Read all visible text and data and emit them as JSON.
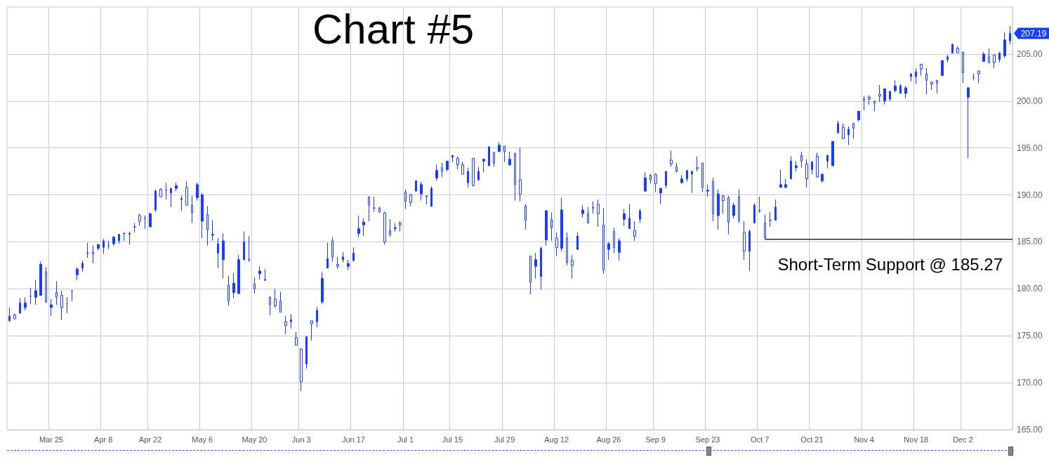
{
  "chart_data": {
    "type": "candlestick",
    "title": "Chart #5",
    "categories": [
      null,
      null,
      null,
      null,
      null,
      null,
      null,
      null,
      "Mar 25",
      null,
      null,
      null,
      null,
      null,
      null,
      null,
      null,
      null,
      "Apr 8",
      null,
      null,
      null,
      null,
      null,
      null,
      null,
      null,
      "Apr 22",
      null,
      null,
      null,
      null,
      null,
      null,
      null,
      null,
      null,
      "May 6",
      null,
      null,
      null,
      null,
      null,
      null,
      null,
      null,
      null,
      "May 20",
      null,
      null,
      null,
      null,
      null,
      null,
      null,
      null,
      "Jun 3",
      null,
      null,
      null,
      null,
      null,
      null,
      null,
      null,
      null,
      "Jun 17",
      null,
      null,
      null,
      null,
      null,
      null,
      null,
      null,
      null,
      "Jul 1",
      null,
      null,
      null,
      null,
      null,
      null,
      null,
      null,
      "Jul 15",
      null,
      null,
      null,
      null,
      null,
      null,
      null,
      null,
      null,
      "Jul 29",
      null,
      null,
      null,
      null,
      null,
      null,
      null,
      null,
      null,
      "Aug 12",
      null,
      null,
      null,
      null,
      null,
      null,
      null,
      null,
      null,
      "Aug 26",
      null,
      null,
      null,
      null,
      null,
      null,
      null,
      null,
      "Sep 9",
      null,
      null,
      null,
      null,
      null,
      null,
      null,
      null,
      null,
      "Sep 23",
      null,
      null,
      null,
      null,
      null,
      null,
      null,
      null,
      null,
      "Oct 7",
      null,
      null,
      null,
      null,
      null,
      null,
      null,
      null,
      null,
      "Oct 21",
      null,
      null,
      null,
      null,
      null,
      null,
      null,
      null,
      null,
      "Nov 4",
      null,
      null,
      null,
      null,
      null,
      null,
      null,
      null,
      null,
      "Nov 18",
      null,
      null,
      null,
      null,
      null,
      null,
      null,
      null,
      "Dec 2",
      null,
      null,
      null,
      null,
      null,
      null,
      null,
      null,
      null
    ],
    "ohlc": [
      [
        176.6,
        178.0,
        176.5,
        177.1
      ],
      [
        177.2,
        177.4,
        176.8,
        176.8
      ],
      [
        177.4,
        179.0,
        177.4,
        178.5
      ],
      [
        178.0,
        179.1,
        177.7,
        178.5
      ],
      [
        179.2,
        180.1,
        178.4,
        179.2
      ],
      [
        179.1,
        180.9,
        178.3,
        179.8
      ],
      [
        179.3,
        182.9,
        179.3,
        182.6
      ],
      [
        181.8,
        182.3,
        178.5,
        178.6
      ],
      [
        178.0,
        178.9,
        177.1,
        178.3
      ],
      [
        179.6,
        180.8,
        178.3,
        179.1
      ],
      [
        179.3,
        179.8,
        176.7,
        178.0
      ],
      [
        178.4,
        179.1,
        177.4,
        178.4
      ],
      [
        179.7,
        179.9,
        178.7,
        179.7
      ],
      [
        181.5,
        182.3,
        180.9,
        182.1
      ],
      [
        182.2,
        183.0,
        181.8,
        182.7
      ],
      [
        183.8,
        184.9,
        183.3,
        183.8
      ],
      [
        183.9,
        184.6,
        182.7,
        183.7
      ],
      [
        184.3,
        184.8,
        184.1,
        184.7
      ],
      [
        184.4,
        185.3,
        183.7,
        185.1
      ],
      [
        184.6,
        185.1,
        184.2,
        184.6
      ],
      [
        184.8,
        185.6,
        184.6,
        185.5
      ],
      [
        185.1,
        185.8,
        184.8,
        185.8
      ],
      [
        185.9,
        186.0,
        185.1,
        185.9
      ],
      [
        185.8,
        186.1,
        184.7,
        185.9
      ],
      [
        186.6,
        187.0,
        186.0,
        186.6
      ],
      [
        187.8,
        188.0,
        186.7,
        187.2
      ],
      [
        187.5,
        187.8,
        186.4,
        187.5
      ],
      [
        186.6,
        188.1,
        186.6,
        188.0
      ],
      [
        188.4,
        190.6,
        188.2,
        190.4
      ],
      [
        190.6,
        190.7,
        189.8,
        189.8
      ],
      [
        190.5,
        191.3,
        189.5,
        190.5
      ],
      [
        190.2,
        190.7,
        188.7,
        190.7
      ],
      [
        190.7,
        191.3,
        190.4,
        191.0
      ],
      [
        189.5,
        189.9,
        188.3,
        189.6
      ],
      [
        190.8,
        191.4,
        188.9,
        188.9
      ],
      [
        188.9,
        189.9,
        187.0,
        188.1
      ],
      [
        189.7,
        191.3,
        189.4,
        191.1
      ],
      [
        187.2,
        190.2,
        185.4,
        190.0
      ],
      [
        187.9,
        188.8,
        184.6,
        186.3
      ],
      [
        185.7,
        187.3,
        185.1,
        185.8
      ],
      [
        183.8,
        185.4,
        182.2,
        184.8
      ],
      [
        183.1,
        185.9,
        181.1,
        185.1
      ],
      [
        180.4,
        181.4,
        178.2,
        178.7
      ],
      [
        179.6,
        181.7,
        179.0,
        180.6
      ],
      [
        179.5,
        183.6,
        179.4,
        183.1
      ],
      [
        183.1,
        186.1,
        183.0,
        185.0
      ],
      [
        183.1,
        185.6,
        182.9,
        183.1
      ],
      [
        180.5,
        181.2,
        179.5,
        180.0
      ],
      [
        181.6,
        182.4,
        181.0,
        181.9
      ],
      [
        180.9,
        182.1,
        180.9,
        181.0
      ],
      [
        179.1,
        179.2,
        177.2,
        178.3
      ],
      [
        178.9,
        180.0,
        178.0,
        178.2
      ],
      [
        178.7,
        179.7,
        177.5,
        177.5
      ],
      [
        176.5,
        177.1,
        175.2,
        176.1
      ],
      [
        176.5,
        177.3,
        175.8,
        176.7
      ],
      [
        174.8,
        175.4,
        174.0,
        174.0
      ],
      [
        173.6,
        173.7,
        169.1,
        170.1
      ],
      [
        172.0,
        174.9,
        171.5,
        174.9
      ],
      [
        176.6,
        176.6,
        174.5,
        176.3
      ],
      [
        176.5,
        178.1,
        175.9,
        177.7
      ],
      [
        178.6,
        181.8,
        178.4,
        181.1
      ],
      [
        182.2,
        184.9,
        182.2,
        183.2
      ],
      [
        185.1,
        185.5,
        182.9,
        183.4
      ],
      [
        182.6,
        183.4,
        182.1,
        182.4
      ],
      [
        183.1,
        183.9,
        182.8,
        183.4
      ],
      [
        182.4,
        183.1,
        182.0,
        182.7
      ],
      [
        183.0,
        184.4,
        182.9,
        183.8
      ],
      [
        185.9,
        187.8,
        185.5,
        186.4
      ],
      [
        186.8,
        187.5,
        185.6,
        187.1
      ],
      [
        189.8,
        189.8,
        187.2,
        188.9
      ],
      [
        188.6,
        189.8,
        188.2,
        188.6
      ],
      [
        188.6,
        188.7,
        188.1,
        188.2
      ],
      [
        188.1,
        188.2,
        184.7,
        185.0
      ],
      [
        186.2,
        187.4,
        185.5,
        185.8
      ],
      [
        186.4,
        187.0,
        186.1,
        186.5
      ],
      [
        187.0,
        187.2,
        186.1,
        186.8
      ],
      [
        190.3,
        190.6,
        188.5,
        189.3
      ],
      [
        190.0,
        190.1,
        188.8,
        189.2
      ],
      [
        190.4,
        191.5,
        190.4,
        191.5
      ],
      [
        190.1,
        191.4,
        189.4,
        191.1
      ],
      [
        189.9,
        189.9,
        189.0,
        189.8
      ],
      [
        188.8,
        190.9,
        188.7,
        190.7
      ],
      [
        191.8,
        193.2,
        191.5,
        192.6
      ],
      [
        192.9,
        193.4,
        191.9,
        192.5
      ],
      [
        192.7,
        193.6,
        192.5,
        193.6
      ],
      [
        194.0,
        194.2,
        193.5,
        194.2
      ],
      [
        193.9,
        194.1,
        192.7,
        193.2
      ],
      [
        193.2,
        193.5,
        192.2,
        192.2
      ],
      [
        191.3,
        192.9,
        190.8,
        192.5
      ],
      [
        193.9,
        193.9,
        190.9,
        191.0
      ],
      [
        191.6,
        193.0,
        191.5,
        192.5
      ],
      [
        193.6,
        193.8,
        192.4,
        193.8
      ],
      [
        193.1,
        195.2,
        193.1,
        195.1
      ],
      [
        194.5,
        194.6,
        193.0,
        193.4
      ],
      [
        194.6,
        195.6,
        194.6,
        195.3
      ],
      [
        195.2,
        195.2,
        193.5,
        194.6
      ],
      [
        193.2,
        194.6,
        193.1,
        193.8
      ],
      [
        194.4,
        194.5,
        189.4,
        191.1
      ],
      [
        191.6,
        195.0,
        189.3,
        190.1
      ],
      [
        188.8,
        189.0,
        186.3,
        187.3
      ],
      [
        183.5,
        183.5,
        179.4,
        180.7
      ],
      [
        182.4,
        183.8,
        181.1,
        183.1
      ],
      [
        181.3,
        184.5,
        179.9,
        184.3
      ],
      [
        185.2,
        188.4,
        184.6,
        188.3
      ],
      [
        187.4,
        188.1,
        185.1,
        186.5
      ],
      [
        185.4,
        186.0,
        183.5,
        184.4
      ],
      [
        184.3,
        189.7,
        184.0,
        188.4
      ],
      [
        185.4,
        186.0,
        182.5,
        182.8
      ],
      [
        183.0,
        183.6,
        181.1,
        182.5
      ],
      [
        184.2,
        186.0,
        184.2,
        185.6
      ],
      [
        188.0,
        188.9,
        187.6,
        188.4
      ],
      [
        188.0,
        188.7,
        187.0,
        187.0
      ],
      [
        188.7,
        189.3,
        188.0,
        188.6
      ],
      [
        189.0,
        189.5,
        186.6,
        188.0
      ],
      [
        186.8,
        188.6,
        181.6,
        182.0
      ],
      [
        184.2,
        185.0,
        183.1,
        184.8
      ],
      [
        186.1,
        186.5,
        183.8,
        184.4
      ],
      [
        183.9,
        185.4,
        183.0,
        185.1
      ],
      [
        187.4,
        188.5,
        186.7,
        188.0
      ],
      [
        186.4,
        189.0,
        186.4,
        187.5
      ],
      [
        186.2,
        187.2,
        185.1,
        185.6
      ],
      [
        187.4,
        188.5,
        187.0,
        188.3
      ],
      [
        190.4,
        192.4,
        190.4,
        191.8
      ],
      [
        192.1,
        192.2,
        191.2,
        191.6
      ],
      [
        192.2,
        192.3,
        190.3,
        191.2
      ],
      [
        190.2,
        190.7,
        189.0,
        190.7
      ],
      [
        191.0,
        192.5,
        190.7,
        192.5
      ],
      [
        193.7,
        194.7,
        193.0,
        193.3
      ],
      [
        193.0,
        193.4,
        192.4,
        192.5
      ],
      [
        191.3,
        192.1,
        191.2,
        191.7
      ],
      [
        191.7,
        192.6,
        191.4,
        192.6
      ],
      [
        192.2,
        192.6,
        190.2,
        192.5
      ],
      [
        192.9,
        194.1,
        192.5,
        192.8
      ],
      [
        193.4,
        193.4,
        190.3,
        190.8
      ],
      [
        190.4,
        191.1,
        189.8,
        190.5
      ],
      [
        191.4,
        191.8,
        187.2,
        188.0
      ],
      [
        187.8,
        190.6,
        186.3,
        190.1
      ],
      [
        189.9,
        190.0,
        188.0,
        189.4
      ],
      [
        189.7,
        189.9,
        185.8,
        187.1
      ],
      [
        187.8,
        189.2,
        187.5,
        188.9
      ],
      [
        189.8,
        190.6,
        187.0,
        187.3
      ],
      [
        186.0,
        187.2,
        183.1,
        184.0
      ],
      [
        184.0,
        186.3,
        181.9,
        186.1
      ],
      [
        187.0,
        189.1,
        187.0,
        188.9
      ],
      [
        188.3,
        189.8,
        188.1,
        188.3
      ],
      [
        187.0,
        187.9,
        185.27,
        185.4
      ],
      [
        187.3,
        188.2,
        186.6,
        187.3
      ],
      [
        187.3,
        189.5,
        187.3,
        188.7
      ],
      [
        190.8,
        192.7,
        190.8,
        191.1
      ],
      [
        190.8,
        191.7,
        190.7,
        191.1
      ],
      [
        191.7,
        194.1,
        191.7,
        193.6
      ],
      [
        192.9,
        193.6,
        192.5,
        193.1
      ],
      [
        194.2,
        194.6,
        192.9,
        193.6
      ],
      [
        193.3,
        193.8,
        190.8,
        191.7
      ],
      [
        192.7,
        193.6,
        192.2,
        193.5
      ],
      [
        194.1,
        194.5,
        191.9,
        191.9
      ],
      [
        191.5,
        192.3,
        191.3,
        192.2
      ],
      [
        193.6,
        194.3,
        192.8,
        194.2
      ],
      [
        193.1,
        195.7,
        193.1,
        195.7
      ],
      [
        196.6,
        197.9,
        196.6,
        197.6
      ],
      [
        197.2,
        197.6,
        196.0,
        196.0
      ],
      [
        196.4,
        197.3,
        195.3,
        197.0
      ],
      [
        197.6,
        197.7,
        196.0,
        197.1
      ],
      [
        198.0,
        198.9,
        197.8,
        198.9
      ],
      [
        200.2,
        200.5,
        199.0,
        200.1
      ],
      [
        200.4,
        200.6,
        199.6,
        200.2
      ],
      [
        200.0,
        200.0,
        198.9,
        199.8
      ],
      [
        200.7,
        201.7,
        199.9,
        200.5
      ],
      [
        200.0,
        201.3,
        199.6,
        201.3
      ],
      [
        200.2,
        201.1,
        200.0,
        201.0
      ],
      [
        201.1,
        202.2,
        200.9,
        201.6
      ],
      [
        200.8,
        201.8,
        200.8,
        201.6
      ],
      [
        200.8,
        201.6,
        200.3,
        201.4
      ],
      [
        202.6,
        202.9,
        202.1,
        202.9
      ],
      [
        202.6,
        203.5,
        201.8,
        203.1
      ],
      [
        203.9,
        203.9,
        202.7,
        203.4
      ],
      [
        202.9,
        203.5,
        200.7,
        202.2
      ],
      [
        202.0,
        202.1,
        201.2,
        201.8
      ],
      [
        202.2,
        202.2,
        200.8,
        201.9
      ],
      [
        202.7,
        204.3,
        202.7,
        204.3
      ],
      [
        204.4,
        204.9,
        204.1,
        204.7
      ],
      [
        205.1,
        206.1,
        205.1,
        206.0
      ],
      [
        205.6,
        205.8,
        205.1,
        205.1
      ],
      [
        205.2,
        205.2,
        201.9,
        203.0
      ],
      [
        200.4,
        201.5,
        193.9,
        201.4
      ],
      [
        202.5,
        202.9,
        202.2,
        202.5
      ],
      [
        203.2,
        203.2,
        201.9,
        202.9
      ],
      [
        204.2,
        205.2,
        204.2,
        205.0
      ],
      [
        204.7,
        205.6,
        204.0,
        204.1
      ],
      [
        204.9,
        204.9,
        203.5,
        204.1
      ],
      [
        204.4,
        205.2,
        204.1,
        205.1
      ],
      [
        204.8,
        207.3,
        204.6,
        206.5
      ],
      [
        206.4,
        208.0,
        206.0,
        207.19
      ]
    ],
    "color": "#1a3cff",
    "ylim": [
      165,
      210
    ],
    "yticks": [
      {
        "value": 165,
        "label": "165.00"
      },
      {
        "value": 170,
        "label": "170.00"
      },
      {
        "value": 175,
        "label": "175.00"
      },
      {
        "value": 180,
        "label": "180.00"
      },
      {
        "value": 185,
        "label": "185.00"
      },
      {
        "value": 190,
        "label": "190.00"
      },
      {
        "value": 195,
        "label": "195.00"
      },
      {
        "value": 200,
        "label": "200.00"
      },
      {
        "value": 205,
        "label": "205.00"
      }
    ],
    "grid": true,
    "ref_lines": [
      {
        "axis": "y",
        "value": 185.27,
        "label": "Short-Term Support @ 185.27",
        "color": "#000000"
      }
    ],
    "annotations": [
      "207.19"
    ]
  }
}
